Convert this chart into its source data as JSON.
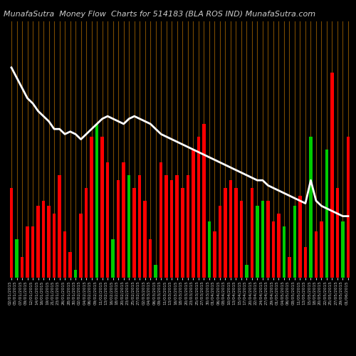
{
  "title_left": "MunafaSutra  Money Flow  Charts for 514183",
  "title_right": "(BLA ROS IND) MunafaSutra.com",
  "bg_color": "#000000",
  "grid_color": "#7a4a00",
  "bar_colors": [
    "#ff0000",
    "#00cc00",
    "#ff0000",
    "#ff0000",
    "#ff0000",
    "#ff0000",
    "#ff0000",
    "#ff0000",
    "#ff0000",
    "#ff0000",
    "#ff0000",
    "#ff0000",
    "#00cc00",
    "#ff0000",
    "#ff0000",
    "#ff0000",
    "#00cc00",
    "#ff0000",
    "#ff0000",
    "#00cc00",
    "#ff0000",
    "#ff0000",
    "#00cc00",
    "#ff0000",
    "#ff0000",
    "#ff0000",
    "#ff0000",
    "#00cc00",
    "#ff0000",
    "#ff0000",
    "#ff0000",
    "#ff0000",
    "#ff0000",
    "#ff0000",
    "#ff0000",
    "#ff0000",
    "#ff0000",
    "#00cc00",
    "#ff0000",
    "#ff0000",
    "#ff0000",
    "#ff0000",
    "#ff0000",
    "#ff0000",
    "#00cc00",
    "#ff0000",
    "#00cc00",
    "#00cc00",
    "#ff0000",
    "#ff0000",
    "#ff0000",
    "#00cc00",
    "#ff0000",
    "#00cc00",
    "#ff0000",
    "#ff0000",
    "#00cc00",
    "#ff0000",
    "#ff0000",
    "#00cc00",
    "#ff0000",
    "#ff0000",
    "#00cc00",
    "#ff0000"
  ],
  "bar_heights": [
    35,
    15,
    8,
    20,
    20,
    28,
    30,
    28,
    25,
    40,
    18,
    10,
    3,
    25,
    35,
    55,
    60,
    55,
    45,
    15,
    38,
    45,
    40,
    35,
    40,
    30,
    15,
    5,
    45,
    40,
    38,
    40,
    35,
    40,
    50,
    55,
    60,
    22,
    18,
    28,
    35,
    38,
    35,
    30,
    5,
    35,
    28,
    30,
    30,
    22,
    25,
    20,
    8,
    28,
    32,
    12,
    55,
    18,
    22,
    50,
    80,
    35,
    22,
    55
  ],
  "line_values": [
    82,
    78,
    74,
    70,
    68,
    65,
    63,
    61,
    58,
    58,
    56,
    57,
    56,
    54,
    56,
    58,
    60,
    62,
    63,
    62,
    61,
    60,
    62,
    63,
    62,
    61,
    60,
    58,
    56,
    55,
    54,
    53,
    52,
    51,
    50,
    49,
    48,
    47,
    46,
    45,
    44,
    43,
    42,
    41,
    40,
    39,
    38,
    38,
    36,
    35,
    34,
    33,
    32,
    31,
    30,
    29,
    38,
    30,
    28,
    27,
    26,
    25,
    24,
    24
  ],
  "x_labels": [
    "02/01/2015",
    "05/01/2015",
    "07/01/2015",
    "09/01/2015",
    "12/01/2015",
    "14/01/2015",
    "16/01/2015",
    "19/01/2015",
    "21/01/2015",
    "23/01/2015",
    "26/01/2015",
    "28/01/2015",
    "30/01/2015",
    "02/02/2015",
    "04/02/2015",
    "06/02/2015",
    "09/02/2015",
    "11/02/2015",
    "13/02/2015",
    "16/02/2015",
    "18/02/2015",
    "20/02/2015",
    "23/02/2015",
    "25/02/2015",
    "27/02/2015",
    "02/03/2015",
    "04/03/2015",
    "06/03/2015",
    "09/03/2015",
    "11/03/2015",
    "13/03/2015",
    "16/03/2015",
    "18/03/2015",
    "20/03/2015",
    "23/03/2015",
    "25/03/2015",
    "27/03/2015",
    "30/03/2015",
    "01/04/2015",
    "06/04/2015",
    "08/04/2015",
    "10/04/2015",
    "13/04/2015",
    "15/04/2015",
    "17/04/2015",
    "20/04/2015",
    "22/04/2015",
    "24/04/2015",
    "27/04/2015",
    "29/04/2015",
    "01/05/2015",
    "04/05/2015",
    "06/05/2015",
    "08/05/2015",
    "11/05/2015",
    "13/05/2015",
    "15/05/2015",
    "18/05/2015",
    "20/05/2015",
    "22/05/2015",
    "25/05/2015",
    "27/05/2015",
    "29/05/2015",
    "01/06/2015"
  ],
  "ylim_bars": [
    0,
    100
  ],
  "line_color": "#ffffff",
  "line_width": 2.0,
  "font_color": "#cccccc",
  "title_fontsize": 8
}
